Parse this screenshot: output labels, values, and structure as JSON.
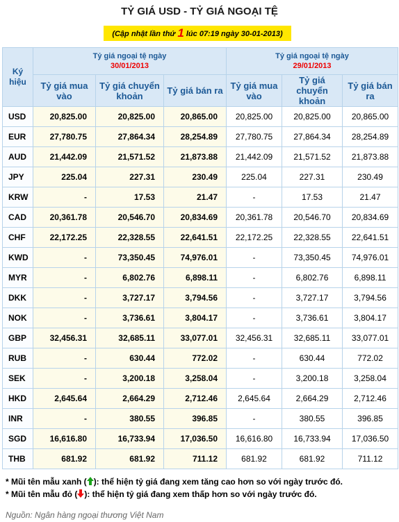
{
  "header": {
    "title": "TỶ GIÁ USD - TỶ GIÁ NGOẠI TỆ",
    "update_before": "(Cập nhật lần thứ",
    "update_count": "1",
    "update_after": "lúc 07:19 ngày 30-01-2013)"
  },
  "table": {
    "code_header": "Ký hiệu",
    "groups": [
      {
        "label": "Tỷ giá ngoại tệ ngày",
        "date": "30/01/2013",
        "columns": [
          "Tỷ giá mua vào",
          "Tỷ giá chuyển khoản",
          "Tỷ giá bán ra"
        ]
      },
      {
        "label": "Tỷ giá ngoại tệ ngày",
        "date": "29/01/2013",
        "columns": [
          "Tỷ giá mua vào",
          "Tỷ giá chuyển khoản",
          "Tỷ giá bán ra"
        ]
      }
    ],
    "rows": [
      {
        "code": "USD",
        "today": [
          "20,825.00",
          "20,825.00",
          "20,865.00"
        ],
        "yesterday": [
          "20,825.00",
          "20,825.00",
          "20,865.00"
        ]
      },
      {
        "code": "EUR",
        "today": [
          "27,780.75",
          "27,864.34",
          "28,254.89"
        ],
        "yesterday": [
          "27,780.75",
          "27,864.34",
          "28,254.89"
        ]
      },
      {
        "code": "AUD",
        "today": [
          "21,442.09",
          "21,571.52",
          "21,873.88"
        ],
        "yesterday": [
          "21,442.09",
          "21,571.52",
          "21,873.88"
        ]
      },
      {
        "code": "JPY",
        "today": [
          "225.04",
          "227.31",
          "230.49"
        ],
        "yesterday": [
          "225.04",
          "227.31",
          "230.49"
        ]
      },
      {
        "code": "KRW",
        "today": [
          "-",
          "17.53",
          "21.47"
        ],
        "yesterday": [
          "-",
          "17.53",
          "21.47"
        ]
      },
      {
        "code": "CAD",
        "today": [
          "20,361.78",
          "20,546.70",
          "20,834.69"
        ],
        "yesterday": [
          "20,361.78",
          "20,546.70",
          "20,834.69"
        ]
      },
      {
        "code": "CHF",
        "today": [
          "22,172.25",
          "22,328.55",
          "22,641.51"
        ],
        "yesterday": [
          "22,172.25",
          "22,328.55",
          "22,641.51"
        ]
      },
      {
        "code": "KWD",
        "today": [
          "-",
          "73,350.45",
          "74,976.01"
        ],
        "yesterday": [
          "-",
          "73,350.45",
          "74,976.01"
        ]
      },
      {
        "code": "MYR",
        "today": [
          "-",
          "6,802.76",
          "6,898.11"
        ],
        "yesterday": [
          "-",
          "6,802.76",
          "6,898.11"
        ]
      },
      {
        "code": "DKK",
        "today": [
          "-",
          "3,727.17",
          "3,794.56"
        ],
        "yesterday": [
          "-",
          "3,727.17",
          "3,794.56"
        ]
      },
      {
        "code": "NOK",
        "today": [
          "-",
          "3,736.61",
          "3,804.17"
        ],
        "yesterday": [
          "-",
          "3,736.61",
          "3,804.17"
        ]
      },
      {
        "code": "GBP",
        "today": [
          "32,456.31",
          "32,685.11",
          "33,077.01"
        ],
        "yesterday": [
          "32,456.31",
          "32,685.11",
          "33,077.01"
        ]
      },
      {
        "code": "RUB",
        "today": [
          "-",
          "630.44",
          "772.02"
        ],
        "yesterday": [
          "-",
          "630.44",
          "772.02"
        ]
      },
      {
        "code": "SEK",
        "today": [
          "-",
          "3,200.18",
          "3,258.04"
        ],
        "yesterday": [
          "-",
          "3,200.18",
          "3,258.04"
        ]
      },
      {
        "code": "HKD",
        "today": [
          "2,645.64",
          "2,664.29",
          "2,712.46"
        ],
        "yesterday": [
          "2,645.64",
          "2,664.29",
          "2,712.46"
        ]
      },
      {
        "code": "INR",
        "today": [
          "-",
          "380.55",
          "396.85"
        ],
        "yesterday": [
          "-",
          "380.55",
          "396.85"
        ]
      },
      {
        "code": "SGD",
        "today": [
          "16,616.80",
          "16,733.94",
          "17,036.50"
        ],
        "yesterday": [
          "16,616.80",
          "16,733.94",
          "17,036.50"
        ]
      },
      {
        "code": "THB",
        "today": [
          "681.92",
          "681.92",
          "711.12"
        ],
        "yesterday": [
          "681.92",
          "681.92",
          "711.12"
        ]
      }
    ]
  },
  "notes": [
    {
      "before": "* Mũi tên mẫu xanh (",
      "after": "): thể hiện tỷ giá đang xem tăng cao hơn so với ngày trước đó."
    },
    {
      "before": "* Mũi tên mẫu đỏ (",
      "after": "): thể hiện tỷ giá đang xem thấp hơn so với ngày trước đó."
    }
  ],
  "source": "Nguồn: Ngân hàng ngoại thương Việt Nam"
}
